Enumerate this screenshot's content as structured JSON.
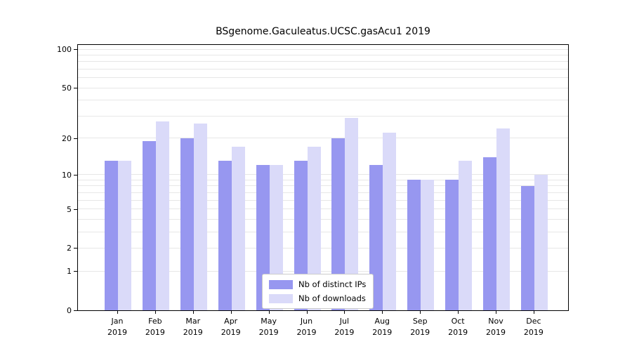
{
  "chart_data": {
    "type": "bar",
    "title": "BSgenome.Gaculeatus.UCSC.gasAcu1 2019",
    "year": "2019",
    "categories": [
      "Jan",
      "Feb",
      "Mar",
      "Apr",
      "May",
      "Jun",
      "Jul",
      "Aug",
      "Sep",
      "Oct",
      "Nov",
      "Dec"
    ],
    "series": [
      {
        "name": "Nb of distinct IPs",
        "color": "#9797f0",
        "values": [
          13,
          19,
          20,
          13,
          12,
          13,
          20,
          12,
          9,
          9,
          14,
          8
        ]
      },
      {
        "name": "Nb of downloads",
        "color": "#dadaf9",
        "values": [
          13,
          27,
          26,
          17,
          12,
          17,
          29,
          22,
          9,
          13,
          24,
          10
        ]
      }
    ],
    "y_ticks": [
      0,
      1,
      2,
      5,
      10,
      20,
      50,
      100
    ],
    "y_minor_gridlines": [
      1,
      2,
      3,
      4,
      5,
      6,
      7,
      8,
      9,
      10,
      20,
      30,
      40,
      50,
      60,
      70,
      80,
      90,
      100
    ],
    "scale": "log1p",
    "ylim": [
      0,
      100
    ],
    "xlabel": "",
    "ylabel": "",
    "grid": true,
    "legend_position": "lower center"
  }
}
